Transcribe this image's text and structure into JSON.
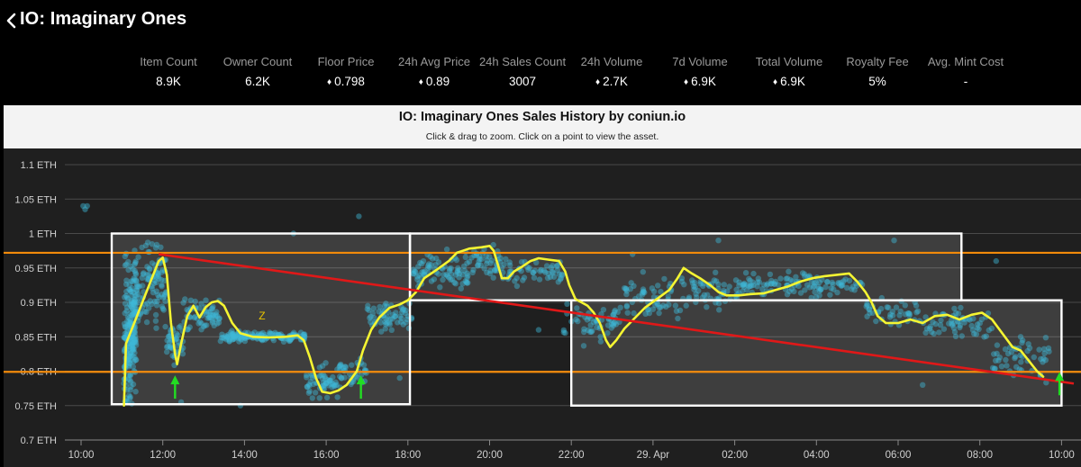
{
  "header": {
    "title": "IO: Imaginary Ones",
    "back_icon": "chevron-left-icon"
  },
  "stats": [
    {
      "label": "Item Count",
      "value": "8.9K",
      "eth": false
    },
    {
      "label": "Owner Count",
      "value": "6.2K",
      "eth": false
    },
    {
      "label": "Floor Price",
      "value": "0.798",
      "eth": true
    },
    {
      "label": "24h Avg Price",
      "value": "0.89",
      "eth": true
    },
    {
      "label": "24h Sales Count",
      "value": "3007",
      "eth": false
    },
    {
      "label": "24h Volume",
      "value": "2.7K",
      "eth": true
    },
    {
      "label": "7d Volume",
      "value": "6.9K",
      "eth": true
    },
    {
      "label": "Total Volume",
      "value": "6.9K",
      "eth": true
    },
    {
      "label": "Royalty Fee",
      "value": "5%",
      "eth": false
    },
    {
      "label": "Avg. Mint Cost",
      "value": "-",
      "eth": false
    }
  ],
  "chart": {
    "title": "IO: Imaginary Ones Sales History by coniun.io",
    "subtitle": "Click & drag to zoom. Click on a point to view the asset."
  },
  "chart_data": {
    "type": "scatter",
    "title": "IO: Imaginary Ones Sales History by coniun.io",
    "y_unit": "ETH",
    "x_ticks": [
      "10:00",
      "12:00",
      "14:00",
      "16:00",
      "18:00",
      "20:00",
      "22:00",
      "29. Apr",
      "02:00",
      "04:00",
      "06:00",
      "08:00",
      "10:00"
    ],
    "y_ticks": [
      "0.7 ETH",
      "0.75 ETH",
      "0.8 ETH",
      "0.85 ETH",
      "0.9 ETH",
      "0.95 ETH",
      "1 ETH",
      "1.05 ETH",
      "1.1 ETH"
    ],
    "ylim": [
      0.7,
      1.1
    ],
    "xlim_hours": [
      9.7,
      34.3
    ],
    "grid": true,
    "colors": {
      "points": "#3fb8d8",
      "moving_avg": "#f5f532",
      "trend": "#e01818",
      "levels": "#f28a0a",
      "boxes": "#ffffff",
      "arrows": "#22dd22"
    },
    "moving_average": [
      [
        11.05,
        0.75
      ],
      [
        11.1,
        0.84
      ],
      [
        11.3,
        0.87
      ],
      [
        11.5,
        0.9
      ],
      [
        11.7,
        0.93
      ],
      [
        11.9,
        0.96
      ],
      [
        12.0,
        0.965
      ],
      [
        12.1,
        0.94
      ],
      [
        12.2,
        0.87
      ],
      [
        12.3,
        0.825
      ],
      [
        12.35,
        0.81
      ],
      [
        12.45,
        0.84
      ],
      [
        12.6,
        0.88
      ],
      [
        12.75,
        0.895
      ],
      [
        12.9,
        0.878
      ],
      [
        13.05,
        0.893
      ],
      [
        13.2,
        0.9
      ],
      [
        13.35,
        0.902
      ],
      [
        13.5,
        0.895
      ],
      [
        13.7,
        0.87
      ],
      [
        13.9,
        0.855
      ],
      [
        14.2,
        0.85
      ],
      [
        14.6,
        0.849
      ],
      [
        15.0,
        0.85
      ],
      [
        15.3,
        0.852
      ],
      [
        15.45,
        0.845
      ],
      [
        15.6,
        0.82
      ],
      [
        15.75,
        0.79
      ],
      [
        15.9,
        0.77
      ],
      [
        16.1,
        0.768
      ],
      [
        16.3,
        0.772
      ],
      [
        16.5,
        0.78
      ],
      [
        16.75,
        0.8
      ],
      [
        16.9,
        0.83
      ],
      [
        17.1,
        0.86
      ],
      [
        17.3,
        0.878
      ],
      [
        17.55,
        0.892
      ],
      [
        17.8,
        0.897
      ],
      [
        18.0,
        0.903
      ],
      [
        18.2,
        0.915
      ],
      [
        18.4,
        0.935
      ],
      [
        18.7,
        0.947
      ],
      [
        19.0,
        0.96
      ],
      [
        19.2,
        0.972
      ],
      [
        19.5,
        0.978
      ],
      [
        19.8,
        0.98
      ],
      [
        20.0,
        0.982
      ],
      [
        20.1,
        0.975
      ],
      [
        20.2,
        0.955
      ],
      [
        20.3,
        0.935
      ],
      [
        20.45,
        0.935
      ],
      [
        20.6,
        0.945
      ],
      [
        20.8,
        0.952
      ],
      [
        21.0,
        0.96
      ],
      [
        21.2,
        0.964
      ],
      [
        21.45,
        0.962
      ],
      [
        21.7,
        0.96
      ],
      [
        21.85,
        0.945
      ],
      [
        21.95,
        0.925
      ],
      [
        22.1,
        0.905
      ],
      [
        22.25,
        0.9
      ],
      [
        22.4,
        0.895
      ],
      [
        22.55,
        0.885
      ],
      [
        22.7,
        0.87
      ],
      [
        22.85,
        0.845
      ],
      [
        22.95,
        0.835
      ],
      [
        23.1,
        0.845
      ],
      [
        23.3,
        0.862
      ],
      [
        23.55,
        0.877
      ],
      [
        23.8,
        0.892
      ],
      [
        24.1,
        0.905
      ],
      [
        24.4,
        0.918
      ],
      [
        24.6,
        0.935
      ],
      [
        24.75,
        0.95
      ],
      [
        24.95,
        0.942
      ],
      [
        25.15,
        0.935
      ],
      [
        25.4,
        0.925
      ],
      [
        25.6,
        0.915
      ],
      [
        25.8,
        0.91
      ],
      [
        26.1,
        0.91
      ],
      [
        26.4,
        0.912
      ],
      [
        26.7,
        0.913
      ],
      [
        27.0,
        0.918
      ],
      [
        27.3,
        0.923
      ],
      [
        27.6,
        0.93
      ],
      [
        27.9,
        0.935
      ],
      [
        28.2,
        0.938
      ],
      [
        28.5,
        0.94
      ],
      [
        28.8,
        0.942
      ],
      [
        29.0,
        0.93
      ],
      [
        29.2,
        0.915
      ],
      [
        29.35,
        0.9
      ],
      [
        29.5,
        0.88
      ],
      [
        29.7,
        0.87
      ],
      [
        30.0,
        0.87
      ],
      [
        30.3,
        0.875
      ],
      [
        30.6,
        0.87
      ],
      [
        30.9,
        0.88
      ],
      [
        31.2,
        0.882
      ],
      [
        31.5,
        0.875
      ],
      [
        31.8,
        0.882
      ],
      [
        32.05,
        0.885
      ],
      [
        32.3,
        0.875
      ],
      [
        32.55,
        0.855
      ],
      [
        32.8,
        0.835
      ],
      [
        33.0,
        0.83
      ],
      [
        33.2,
        0.815
      ],
      [
        33.4,
        0.8
      ],
      [
        33.55,
        0.792
      ]
    ],
    "scatter_clusters": [
      [
        10.0,
        0.82,
        10.1,
        1.04,
        12
      ],
      [
        11.05,
        11.35,
        0.74,
        0.97,
        140
      ],
      [
        11.3,
        12.1,
        0.85,
        1.0,
        110
      ],
      [
        12.1,
        12.5,
        0.8,
        0.88,
        40
      ],
      [
        12.5,
        13.4,
        0.85,
        0.91,
        60
      ],
      [
        13.4,
        15.5,
        0.84,
        0.86,
        150
      ],
      [
        15.5,
        16.3,
        0.75,
        0.82,
        55
      ],
      [
        16.3,
        17.0,
        0.76,
        0.83,
        40
      ],
      [
        17.0,
        18.1,
        0.85,
        0.91,
        60
      ],
      [
        18.1,
        19.5,
        0.91,
        0.98,
        80
      ],
      [
        19.5,
        20.4,
        0.93,
        0.99,
        45
      ],
      [
        20.4,
        21.8,
        0.92,
        0.97,
        50
      ],
      [
        21.8,
        23.2,
        0.83,
        0.91,
        55
      ],
      [
        23.2,
        24.7,
        0.86,
        0.95,
        55
      ],
      [
        24.7,
        26.2,
        0.88,
        0.95,
        60
      ],
      [
        26.2,
        29.2,
        0.9,
        0.95,
        110
      ],
      [
        29.2,
        30.5,
        0.86,
        0.91,
        40
      ],
      [
        30.5,
        32.3,
        0.84,
        0.9,
        60
      ],
      [
        32.3,
        33.7,
        0.78,
        0.86,
        50
      ]
    ],
    "outliers": [
      [
        10.05,
        1.04
      ],
      [
        10.1,
        1.035
      ],
      [
        10.15,
        1.04
      ],
      [
        11.95,
        0.98
      ],
      [
        12.45,
        0.755
      ],
      [
        13.9,
        0.75
      ],
      [
        15.2,
        1.0
      ],
      [
        16.8,
        1.025
      ],
      [
        17.8,
        0.79
      ],
      [
        19.3,
        0.92
      ],
      [
        21.2,
        0.86
      ],
      [
        23.5,
        0.97
      ],
      [
        24.0,
        0.89
      ],
      [
        25.6,
        0.99
      ],
      [
        27.0,
        0.93
      ],
      [
        29.9,
        0.99
      ],
      [
        30.6,
        0.78
      ],
      [
        32.4,
        0.96
      ],
      [
        33.0,
        0.85
      ]
    ],
    "trend_line": [
      [
        11.9,
        0.97
      ],
      [
        34.3,
        0.782
      ]
    ],
    "levels": [
      0.972,
      0.799
    ],
    "boxes": [
      {
        "x0": 10.75,
        "x1": 18.05,
        "y0": 0.752,
        "y1": 1.0
      },
      {
        "x0": 18.05,
        "x1": 31.55,
        "y0": 0.903,
        "y1": 1.0
      },
      {
        "x0": 22.0,
        "x1": 34.0,
        "y0": 0.75,
        "y1": 0.903
      }
    ],
    "arrows": [
      [
        12.3,
        0.76,
        0.79
      ],
      [
        16.85,
        0.76,
        0.79
      ],
      [
        33.95,
        0.765,
        0.795
      ]
    ],
    "annotations": [
      {
        "x": 14.35,
        "y": 0.875,
        "text": "Z"
      }
    ]
  }
}
